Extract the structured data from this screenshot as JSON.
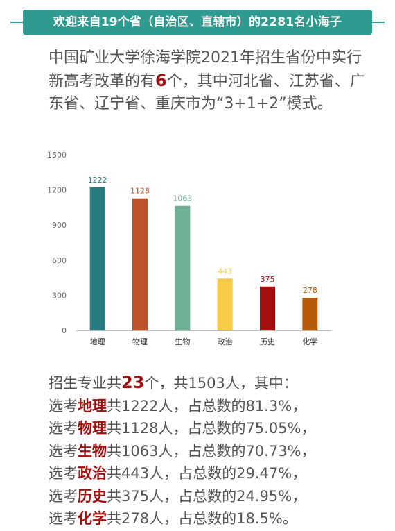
{
  "banner": {
    "text": "欢迎来自19个省（自治区、直辖市）的2281名小海子"
  },
  "intro": {
    "before": "中国矿业大学徐海学院2021年招生省份中实行新高考改革的有",
    "count": "6",
    "after": "个，其中河北省、江苏省、广东省、辽宁省、重庆市为“3+1+2”模式。"
  },
  "colors": {
    "banner": "#2f9b90",
    "highlight": "#a01010",
    "bars": [
      "#2a7b80",
      "#c0522b",
      "#6db094",
      "#f6cb46",
      "#a50f0f",
      "#b85b08"
    ]
  },
  "chart_data": {
    "type": "bar",
    "categories": [
      "地理",
      "物理",
      "生物",
      "政治",
      "历史",
      "化学"
    ],
    "values": [
      1222,
      1128,
      1063,
      443,
      375,
      278
    ],
    "ylim": [
      0,
      1500
    ],
    "yticks": [
      0,
      300,
      600,
      900,
      1200,
      1500
    ],
    "grid": false,
    "data_labels": true
  },
  "summary": {
    "first": {
      "prefix": "招生专业共",
      "count": "23",
      "suffix": "个，共1503人，其中："
    },
    "rows": [
      {
        "prefix": "选考",
        "subject": "地理",
        "rest": "共1222人，占总数的81.3%，"
      },
      {
        "prefix": "选考",
        "subject": "物理",
        "rest": "共1128人，占总数的75.05%，"
      },
      {
        "prefix": "选考",
        "subject": "生物",
        "rest": "共1063人，占总数的70.73%，"
      },
      {
        "prefix": "选考",
        "subject": "政治",
        "rest": "共443人，占总数的29.47%，"
      },
      {
        "prefix": "选考",
        "subject": "历史",
        "rest": "共375人，占总数的24.95%，"
      },
      {
        "prefix": "选考",
        "subject": "化学",
        "rest": "共278人，占总数的18.5%。"
      }
    ]
  }
}
